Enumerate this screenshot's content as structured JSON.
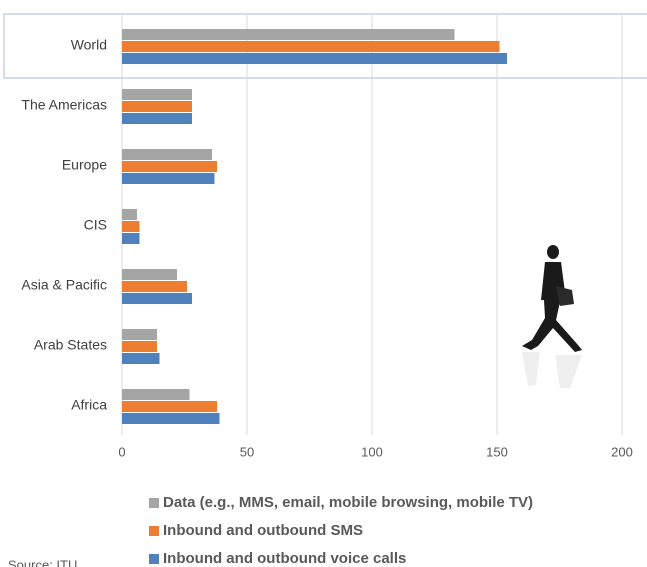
{
  "chart_data": {
    "type": "barh",
    "categories": [
      "World",
      "The Americas",
      "Europe",
      "CIS",
      "Asia & Pacific",
      "Arab States",
      "Africa"
    ],
    "series": [
      {
        "name": "Data (e.g., MMS, email, mobile browsing, mobile TV)",
        "color": "#a5a5a5",
        "values": [
          133,
          28,
          36,
          6,
          22,
          14,
          27
        ]
      },
      {
        "name": "Inbound and outbound SMS",
        "color": "#ed7d31",
        "values": [
          151,
          28,
          38,
          7,
          26,
          14,
          38
        ]
      },
      {
        "name": "Inbound and outbound voice calls",
        "color": "#4f81bd",
        "values": [
          154,
          28,
          37,
          7,
          28,
          15,
          39
        ]
      }
    ],
    "xlim": [
      0,
      200
    ],
    "xticks": [
      0,
      50,
      100,
      150,
      200
    ],
    "grid": true,
    "source": "Source: ITU"
  }
}
